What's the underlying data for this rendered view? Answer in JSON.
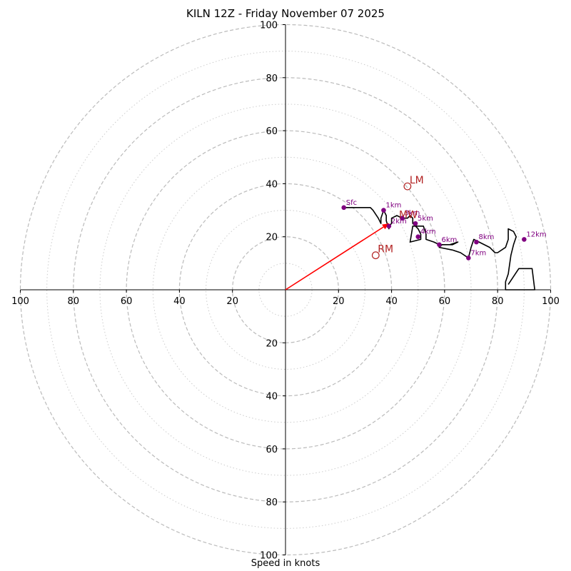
{
  "title": "KILN 12Z - Friday November 07 2025",
  "chart_data": {
    "type": "hodograph",
    "xlabel": "Speed in knots",
    "units": "knots",
    "range": [
      -100,
      100
    ],
    "rings_major": [
      20,
      40,
      60,
      80,
      100
    ],
    "rings_minor": [
      10,
      30,
      50,
      70,
      90
    ],
    "ticks": [
      {
        "value": -100,
        "label": "100"
      },
      {
        "value": -80,
        "label": "80"
      },
      {
        "value": -60,
        "label": "60"
      },
      {
        "value": -40,
        "label": "40"
      },
      {
        "value": -20,
        "label": "20"
      },
      {
        "value": 20,
        "label": "20"
      },
      {
        "value": 40,
        "label": "40"
      },
      {
        "value": 60,
        "label": "60"
      },
      {
        "value": 80,
        "label": "80"
      },
      {
        "value": 100,
        "label": "100"
      }
    ],
    "hodograph_trace": [
      [
        22,
        31
      ],
      [
        32,
        31
      ],
      [
        33,
        30
      ],
      [
        35,
        27
      ],
      [
        36,
        25
      ],
      [
        36,
        27
      ],
      [
        37,
        30
      ],
      [
        38,
        28
      ],
      [
        38,
        26
      ],
      [
        39,
        23
      ],
      [
        39,
        24
      ],
      [
        40,
        25
      ],
      [
        40,
        27
      ],
      [
        42,
        28
      ],
      [
        44,
        27
      ],
      [
        46,
        27
      ],
      [
        47,
        28
      ],
      [
        48,
        27
      ],
      [
        48,
        25
      ],
      [
        50,
        23
      ],
      [
        51,
        21
      ],
      [
        51,
        19
      ],
      [
        47,
        18
      ],
      [
        48,
        24
      ],
      [
        50,
        24
      ],
      [
        52,
        24
      ],
      [
        53,
        21
      ],
      [
        53,
        19
      ],
      [
        56,
        18
      ],
      [
        58,
        17
      ],
      [
        61,
        17
      ],
      [
        63,
        17
      ],
      [
        65,
        18
      ],
      [
        62,
        17
      ],
      [
        59,
        17
      ],
      [
        58,
        16
      ],
      [
        63,
        15
      ],
      [
        66,
        14
      ],
      [
        69,
        12
      ],
      [
        70,
        16
      ],
      [
        71,
        19
      ],
      [
        73,
        18
      ],
      [
        77,
        16
      ],
      [
        78,
        15
      ],
      [
        79,
        14
      ],
      [
        80,
        14
      ],
      [
        83,
        16
      ],
      [
        84,
        19
      ],
      [
        84,
        23
      ],
      [
        86,
        22
      ],
      [
        87,
        20
      ],
      [
        86,
        17
      ],
      [
        85,
        13
      ],
      [
        84,
        6
      ],
      [
        83,
        3
      ],
      [
        83,
        0
      ],
      [
        94,
        0
      ],
      [
        93,
        8
      ],
      [
        88,
        8
      ],
      [
        86,
        5
      ],
      [
        84,
        2
      ]
    ],
    "height_markers": [
      {
        "label": "Sfc",
        "u": 22,
        "v": 31
      },
      {
        "label": "1km",
        "u": 37,
        "v": 30
      },
      {
        "label": "2km",
        "u": 39,
        "v": 24
      },
      {
        "label": "3km",
        "u": 44,
        "v": 27
      },
      {
        "label": "4km",
        "u": 50,
        "v": 20
      },
      {
        "label": "5km",
        "u": 49,
        "v": 25
      },
      {
        "label": "6km",
        "u": 58,
        "v": 17
      },
      {
        "label": "7km",
        "u": 69,
        "v": 12
      },
      {
        "label": "8km",
        "u": 72,
        "v": 18
      },
      {
        "label": "12km",
        "u": 90,
        "v": 19
      }
    ],
    "motion_markers": [
      {
        "label": "LM",
        "u": 46,
        "v": 39
      },
      {
        "label": "RM",
        "u": 34,
        "v": 13
      },
      {
        "label": "MW",
        "u": 42,
        "v": 26
      }
    ],
    "storm_motion_vector": {
      "u": 39,
      "v": 25
    },
    "colors": {
      "trace": "#000000",
      "vector": "#ff0000",
      "height_markers": "#800080",
      "motion_markers": "#b22222",
      "rings": "#bbbbbb"
    }
  }
}
